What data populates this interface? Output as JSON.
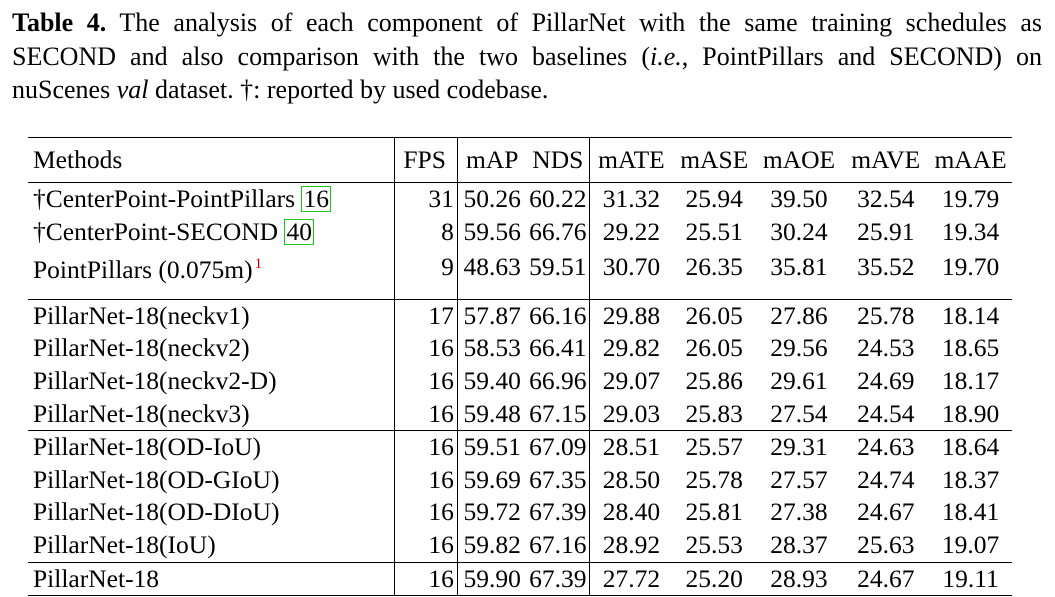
{
  "caption": {
    "label": "Table 4.",
    "text_1": " The analysis of each component of PillarNet with the same training schedules as SECOND and also comparison with the two baselines (",
    "ie": "i.e.",
    "text_2": ", PointPillars and SECOND) on nuScenes ",
    "val": "val",
    "text_3": " dataset. †: reported by used codebase."
  },
  "table": {
    "headers": [
      "Methods",
      "FPS",
      "mAP",
      "NDS",
      "mATE",
      "mASE",
      "mAOE",
      "mAVE",
      "mAAE"
    ],
    "baselines": [
      {
        "method": "†CenterPoint-PointPillars ",
        "ref": "16",
        "sup": "",
        "values": [
          "31",
          "50.26",
          "60.22",
          "31.32",
          "25.94",
          "39.50",
          "32.54",
          "19.79"
        ]
      },
      {
        "method": "†CenterPoint-SECOND ",
        "ref": "40",
        "sup": "",
        "values": [
          "8",
          "59.56",
          "66.76",
          "29.22",
          "25.51",
          "30.24",
          "25.91",
          "19.34"
        ]
      },
      {
        "method": "PointPillars (0.075m)",
        "ref": "",
        "sup": "1",
        "values": [
          "9",
          "48.63",
          "59.51",
          "30.70",
          "26.35",
          "35.81",
          "35.52",
          "19.70"
        ]
      }
    ],
    "group_neck": [
      {
        "method": "PillarNet-18(neckv1)",
        "values": [
          "17",
          "57.87",
          "66.16",
          "29.88",
          "26.05",
          "27.86",
          "25.78",
          "18.14"
        ]
      },
      {
        "method": "PillarNet-18(neckv2)",
        "values": [
          "16",
          "58.53",
          "66.41",
          "29.82",
          "26.05",
          "29.56",
          "24.53",
          "18.65"
        ]
      },
      {
        "method": "PillarNet-18(neckv2-D)",
        "values": [
          "16",
          "59.40",
          "66.96",
          "29.07",
          "25.86",
          "29.61",
          "24.69",
          "18.17"
        ]
      },
      {
        "method": "PillarNet-18(neckv3)",
        "values": [
          "16",
          "59.48",
          "67.15",
          "29.03",
          "25.83",
          "27.54",
          "24.54",
          "18.90"
        ]
      }
    ],
    "group_iou": [
      {
        "method": "PillarNet-18(OD-IoU)",
        "values": [
          "16",
          "59.51",
          "67.09",
          "28.51",
          "25.57",
          "29.31",
          "24.63",
          "18.64"
        ]
      },
      {
        "method": "PillarNet-18(OD-GIoU)",
        "values": [
          "16",
          "59.69",
          "67.35",
          "28.50",
          "25.78",
          "27.57",
          "24.74",
          "18.37"
        ]
      },
      {
        "method": "PillarNet-18(OD-DIoU)",
        "values": [
          "16",
          "59.72",
          "67.39",
          "28.40",
          "25.81",
          "27.38",
          "24.67",
          "18.41"
        ]
      },
      {
        "method": "PillarNet-18(IoU)",
        "values": [
          "16",
          "59.82",
          "67.16",
          "28.92",
          "25.53",
          "28.37",
          "25.63",
          "19.07"
        ]
      }
    ],
    "final": [
      {
        "method": "PillarNet-18",
        "values": [
          "16",
          "59.90",
          "67.39",
          "27.72",
          "25.20",
          "28.93",
          "24.67",
          "19.11"
        ]
      }
    ]
  },
  "colors": {
    "ref_box": "#1ec81e",
    "footnote": "#d00000"
  }
}
